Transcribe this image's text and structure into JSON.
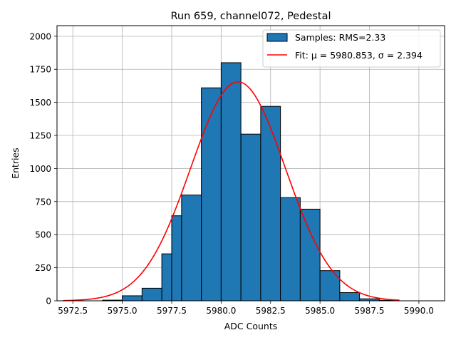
{
  "chart_data": {
    "type": "bar",
    "title": "Run 659, channel072, Pedestal",
    "xlabel": "ADC Counts",
    "ylabel": "Entries",
    "xlim": [
      5971.7,
      5991.3
    ],
    "ylim": [
      0,
      2080
    ],
    "grid": true,
    "legend_position": "top-right",
    "x_ticks": [
      5972.5,
      5975.0,
      5977.5,
      5980.0,
      5982.5,
      5985.0,
      5987.5,
      5990.0
    ],
    "x_tick_labels": [
      "5972.5",
      "5975.0",
      "5977.5",
      "5980.0",
      "5982.5",
      "5985.0",
      "5987.5",
      "5990.0"
    ],
    "y_ticks": [
      0,
      250,
      500,
      750,
      1000,
      1250,
      1500,
      1750,
      2000
    ],
    "y_tick_labels": [
      "0",
      "250",
      "500",
      "750",
      "1000",
      "1250",
      "1500",
      "1750",
      "2000"
    ],
    "histogram": {
      "name": "Samples: RMS=2.33",
      "color": "#1f77b4",
      "edge_color": "#000000",
      "bins": [
        {
          "x0": 5974.0,
          "x1": 5975.0,
          "count": 5
        },
        {
          "x0": 5975.0,
          "x1": 5976.0,
          "count": 38
        },
        {
          "x0": 5976.0,
          "x1": 5977.0,
          "count": 95
        },
        {
          "x0": 5977.0,
          "x1": 5977.5,
          "count": 355
        },
        {
          "x0": 5977.5,
          "x1": 5978.0,
          "count": 643
        },
        {
          "x0": 5978.0,
          "x1": 5979.0,
          "count": 800
        },
        {
          "x0": 5979.0,
          "x1": 5980.0,
          "count": 1610
        },
        {
          "x0": 5980.0,
          "x1": 5981.0,
          "count": 1800
        },
        {
          "x0": 5981.0,
          "x1": 5982.0,
          "count": 1260
        },
        {
          "x0": 5982.0,
          "x1": 5983.0,
          "count": 1470
        },
        {
          "x0": 5983.0,
          "x1": 5984.0,
          "count": 780
        },
        {
          "x0": 5984.0,
          "x1": 5985.0,
          "count": 693
        },
        {
          "x0": 5985.0,
          "x1": 5986.0,
          "count": 228
        },
        {
          "x0": 5986.0,
          "x1": 5987.0,
          "count": 62
        },
        {
          "x0": 5987.0,
          "x1": 5988.0,
          "count": 15
        },
        {
          "x0": 5988.0,
          "x1": 5989.0,
          "count": 4
        }
      ]
    },
    "fit": {
      "name": "Fit: μ = 5980.853, σ = 2.394",
      "color": "#ff0000",
      "mu": 5980.853,
      "sigma": 2.394,
      "amplitude": 1655,
      "x_range": [
        5972.0,
        5989.0
      ]
    }
  }
}
